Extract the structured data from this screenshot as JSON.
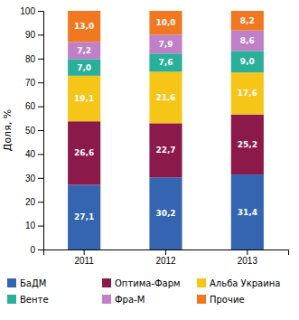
{
  "chart_data": {
    "type": "bar",
    "stacked": true,
    "data_labels": true,
    "grid": false,
    "legend": "bottom",
    "ylabel": "Доля, %",
    "categories": [
      "2011",
      "2012",
      "2013"
    ],
    "ylim": [
      0,
      100
    ],
    "yticks": [
      0,
      10,
      20,
      30,
      40,
      50,
      60,
      70,
      80,
      90,
      100
    ],
    "series": [
      {
        "name": "БаДМ",
        "color": "#3565b0",
        "values": [
          27.1,
          30.2,
          31.4
        ],
        "value_labels": [
          "27,1",
          "30,2",
          "31,4"
        ]
      },
      {
        "name": "Оптима-Фарм",
        "color": "#8b1a4a",
        "values": [
          26.6,
          22.7,
          25.2
        ],
        "value_labels": [
          "26,6",
          "22,7",
          "25,2"
        ]
      },
      {
        "name": "Альба Украина",
        "color": "#f5c518",
        "values": [
          19.1,
          21.6,
          17.6
        ],
        "value_labels": [
          "19,1",
          "21,6",
          "17,6"
        ]
      },
      {
        "name": "Венте",
        "color": "#2ab09a",
        "values": [
          7.0,
          7.6,
          9.0
        ],
        "value_labels": [
          "7,0",
          "7,6",
          "9,0"
        ]
      },
      {
        "name": "Фра-М",
        "color": "#c080c8",
        "values": [
          7.2,
          7.9,
          8.6
        ],
        "value_labels": [
          "7,2",
          "7,9",
          "8,6"
        ]
      },
      {
        "name": "Прочие",
        "color": "#f07820",
        "values": [
          13.0,
          10.0,
          8.2
        ],
        "value_labels": [
          "13,0",
          "10,0",
          "8,2"
        ]
      }
    ]
  }
}
